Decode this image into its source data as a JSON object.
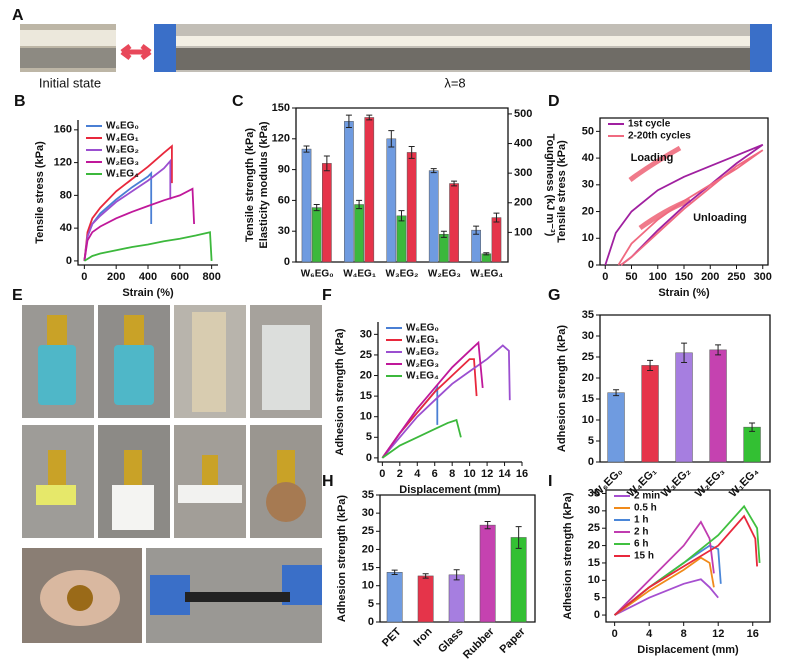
{
  "photo_panels": [
    {
      "label": "A",
      "captions": [
        "Initial state",
        "λ=8"
      ]
    },
    {
      "label": "E"
    }
  ],
  "chart_data": [
    {
      "type": "line",
      "label": "B",
      "xlabel": "Strain (%)",
      "ylabel": "Tensile stress (kPa)",
      "xlim": [
        -40,
        840
      ],
      "ylim": [
        -5,
        172
      ],
      "xticks": [
        0,
        200,
        400,
        600,
        800
      ],
      "yticks": [
        0,
        40,
        80,
        120,
        160
      ],
      "legend": "upper left",
      "series": [
        {
          "name": "W₆EG₀",
          "color": "#4a7fd4",
          "x": [
            0,
            20,
            50,
            100,
            200,
            300,
            400,
            420,
            420
          ],
          "values": [
            0,
            30,
            45,
            58,
            75,
            90,
            103,
            107,
            45
          ]
        },
        {
          "name": "W₄EG₁",
          "color": "#e8283c",
          "x": [
            0,
            20,
            50,
            100,
            200,
            300,
            400,
            500,
            550,
            550
          ],
          "values": [
            0,
            35,
            52,
            65,
            85,
            100,
            115,
            132,
            140,
            95
          ]
        },
        {
          "name": "W₃EG₂",
          "color": "#9b4fd0",
          "x": [
            0,
            20,
            50,
            100,
            200,
            300,
            400,
            500,
            540,
            540
          ],
          "values": [
            0,
            30,
            45,
            55,
            72,
            85,
            98,
            113,
            122,
            75
          ]
        },
        {
          "name": "W₂EG₃",
          "color": "#c0189a",
          "x": [
            0,
            20,
            50,
            100,
            200,
            300,
            400,
            500,
            600,
            680,
            690
          ],
          "values": [
            0,
            25,
            35,
            42,
            52,
            60,
            67,
            74,
            80,
            88,
            45
          ]
        },
        {
          "name": "W₁EG₄",
          "color": "#3cb83c",
          "x": [
            0,
            50,
            100,
            200,
            300,
            400,
            500,
            600,
            700,
            790,
            800
          ],
          "values": [
            0,
            6,
            9,
            13,
            17,
            20,
            24,
            27,
            31,
            35,
            0
          ]
        }
      ]
    },
    {
      "type": "bar",
      "label": "C",
      "ylabel": [
        "Tensile strength (kPa)",
        "Elasticity modulus (kPa)"
      ],
      "y2label": "Toughness (kJ m⁻³)",
      "categories": [
        "W₆EG₀",
        "W₄EG₁",
        "W₃EG₂",
        "W₂EG₃",
        "W₁EG₄"
      ],
      "ylim": [
        0,
        150
      ],
      "yticks": [
        0,
        30,
        60,
        90,
        120,
        150
      ],
      "y2lim": [
        0,
        520
      ],
      "y2ticks": [
        100,
        200,
        300,
        400,
        500
      ],
      "series": [
        {
          "color": "#6f9be0",
          "values": [
            110,
            137,
            120,
            89,
            31
          ],
          "errors": [
            3,
            6,
            8,
            2,
            4
          ]
        },
        {
          "color": "#3cb83c",
          "values": [
            53,
            56,
            45,
            27,
            8
          ],
          "errors": [
            3,
            4,
            5,
            3,
            1
          ]
        },
        {
          "color": "#e5344a",
          "axis": "y2",
          "values": [
            333,
            488,
            370,
            265,
            150
          ],
          "errors": [
            25,
            8,
            20,
            8,
            15
          ]
        }
      ]
    },
    {
      "type": "line",
      "label": "D",
      "xlabel": "Strain (%)",
      "ylabel": "Tensile stress (kPa)",
      "xlim": [
        -10,
        310
      ],
      "ylim": [
        0,
        55
      ],
      "xticks": [
        0,
        50,
        100,
        150,
        200,
        250,
        300
      ],
      "yticks": [
        0,
        10,
        20,
        30,
        40,
        50
      ],
      "legend": "upper left",
      "annotations": [
        "Loading",
        "Unloading"
      ],
      "series": [
        {
          "name": "1st cycle",
          "color": "#a020a0",
          "x": [
            0,
            20,
            50,
            100,
            150,
            200,
            250,
            300,
            250,
            200,
            150,
            100,
            50,
            30
          ],
          "values": [
            0,
            12,
            20,
            28,
            33,
            37,
            41,
            45,
            38,
            30,
            22,
            13,
            3,
            0
          ]
        },
        {
          "name": "2-20th cycles",
          "color": "#f06a80",
          "x": [
            25,
            50,
            100,
            150,
            200,
            250,
            300,
            250,
            200,
            150,
            100,
            50,
            30
          ],
          "values": [
            0,
            8,
            17,
            24,
            30,
            36,
            43,
            37,
            29,
            21,
            12,
            3,
            0
          ]
        }
      ]
    },
    {
      "type": "line",
      "label": "F",
      "xlabel": "Displacement (mm)",
      "ylabel": "Adhesion strength (kPa)",
      "xlim": [
        -0.5,
        16
      ],
      "ylim": [
        -1,
        33
      ],
      "xticks": [
        0,
        2,
        4,
        6,
        8,
        10,
        12,
        14,
        16
      ],
      "yticks": [
        0,
        5,
        10,
        15,
        20,
        25,
        30
      ],
      "legend": "upper left",
      "series": [
        {
          "name": "W₆EG₀",
          "color": "#4a7fd4",
          "x": [
            0,
            2,
            4,
            6,
            6.3,
            6.3
          ],
          "values": [
            0,
            6,
            11,
            16,
            17,
            8
          ]
        },
        {
          "name": "W₄EG₁",
          "color": "#e8283c",
          "x": [
            0,
            2,
            4,
            6,
            8,
            10,
            10.5,
            10.8
          ],
          "values": [
            0,
            6,
            11,
            16,
            20,
            24,
            24,
            15
          ]
        },
        {
          "name": "W₃EG₂",
          "color": "#9b4fd0",
          "x": [
            0,
            2,
            4,
            6,
            8,
            10,
            12,
            13.8,
            14.5,
            14.6
          ],
          "values": [
            0,
            5,
            10,
            14,
            18,
            21,
            24,
            27.3,
            26,
            14
          ]
        },
        {
          "name": "W₂EG₃",
          "color": "#c0189a",
          "x": [
            0,
            2,
            4,
            6,
            8,
            10,
            11,
            11.5
          ],
          "values": [
            0,
            6,
            12,
            17,
            22,
            26,
            28,
            17
          ]
        },
        {
          "name": "W₁EG₄",
          "color": "#3cb83c",
          "x": [
            0,
            2,
            4,
            6,
            7.5,
            8.5,
            9
          ],
          "values": [
            0,
            3,
            5,
            7,
            8.5,
            9.2,
            5
          ]
        }
      ]
    },
    {
      "type": "bar",
      "label": "G",
      "ylabel": "Adhesion strength (kPa)",
      "categories": [
        "W₆EG₀",
        "W₄EG₁",
        "W₃EG₂",
        "W₂EG₃",
        "W₁EG₄"
      ],
      "colors": [
        "#6f9be0",
        "#e5344a",
        "#a67ee0",
        "#c542b0",
        "#33c033"
      ],
      "ylim": [
        0,
        35
      ],
      "yticks": [
        0,
        5,
        10,
        15,
        20,
        25,
        30,
        35
      ],
      "series": [
        {
          "values": [
            16.5,
            23,
            26,
            26.7,
            8.3
          ],
          "errors": [
            0.7,
            1.2,
            2.3,
            1.2,
            1
          ]
        }
      ]
    },
    {
      "type": "bar",
      "label": "H",
      "ylabel": "Adhesion strength (kPa)",
      "categories": [
        "PET",
        "Iron",
        "Glass",
        "Rubber",
        "Paper"
      ],
      "colors": [
        "#6f9be0",
        "#e5344a",
        "#a67ee0",
        "#c542b0",
        "#33c033"
      ],
      "ylim": [
        0,
        35
      ],
      "yticks": [
        0,
        5,
        10,
        15,
        20,
        25,
        30,
        35
      ],
      "series": [
        {
          "values": [
            13.7,
            12.7,
            13,
            26.7,
            23.3
          ],
          "errors": [
            0.6,
            0.6,
            1.4,
            1,
            3
          ]
        }
      ]
    },
    {
      "type": "line",
      "label": "I",
      "xlabel": "Displacement (mm)",
      "ylabel": "Adhesion strength (kPa)",
      "xlim": [
        -1,
        18
      ],
      "ylim": [
        -2,
        36
      ],
      "xticks": [
        0,
        4,
        8,
        12,
        16
      ],
      "yticks": [
        0,
        5,
        10,
        15,
        20,
        25,
        30,
        35
      ],
      "legend": "upper left",
      "series": [
        {
          "name": "2 min",
          "color": "#a64fd0",
          "x": [
            0,
            4,
            8,
            10,
            11,
            12
          ],
          "values": [
            0,
            5,
            9,
            10.3,
            8,
            5
          ]
        },
        {
          "name": "0.5 h",
          "color": "#f08a1a",
          "x": [
            0,
            4,
            8,
            10,
            11,
            11.5
          ],
          "values": [
            0,
            7,
            13,
            16.5,
            15,
            8
          ]
        },
        {
          "name": "1 h",
          "color": "#4a86d8",
          "x": [
            0,
            4,
            8,
            11,
            12,
            12.3
          ],
          "values": [
            0,
            8,
            15,
            20,
            19,
            9
          ]
        },
        {
          "name": "2 h",
          "color": "#c03cb0",
          "x": [
            0,
            4,
            8,
            10,
            11,
            11.5
          ],
          "values": [
            0,
            10,
            20,
            26.8,
            22,
            12
          ]
        },
        {
          "name": "6 h",
          "color": "#40c040",
          "x": [
            0,
            4,
            8,
            12,
            15,
            16.5,
            16.8
          ],
          "values": [
            0,
            8,
            15,
            23,
            31.3,
            25,
            15
          ]
        },
        {
          "name": "15 h",
          "color": "#e8283c",
          "x": [
            0,
            4,
            8,
            12,
            15,
            16.3,
            16.5
          ],
          "values": [
            0,
            8,
            14,
            20,
            28.5,
            22,
            14
          ]
        }
      ]
    }
  ]
}
